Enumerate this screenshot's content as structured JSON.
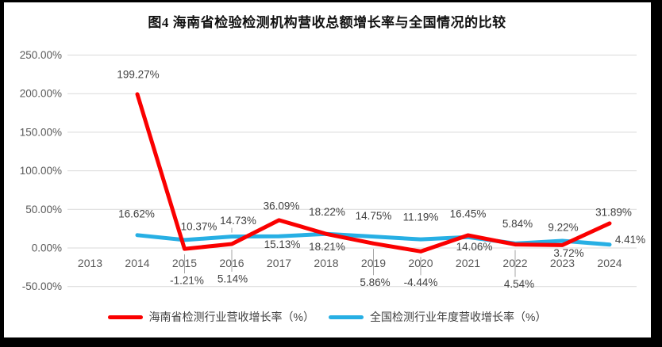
{
  "frame": {
    "border_color": "#000000",
    "background": "#ffffff"
  },
  "chart_data": {
    "type": "line",
    "title": "图4 海南省检验检测机构营收总额增长率与全国情况的比较",
    "categories": [
      "2013",
      "2014",
      "2015",
      "2016",
      "2017",
      "2018",
      "2019",
      "2020",
      "2021",
      "2022",
      "2023",
      "2024"
    ],
    "xlabel": "",
    "ylabel": "",
    "ylim": [
      -50,
      250
    ],
    "grid": true,
    "legend_position": "bottom",
    "colors": {
      "hainan": "#FA0000",
      "national": "#27AFE4",
      "gridline": "#D9D9D9",
      "tick_text": "#595959",
      "data_label_text": "#404040",
      "callout_line": "#A6A6A6"
    },
    "y_axis": {
      "ticks": [
        {
          "label": "250.00%",
          "value": 250
        },
        {
          "label": "200.00%",
          "value": 200
        },
        {
          "label": "150.00%",
          "value": 150
        },
        {
          "label": "100.00%",
          "value": 100
        },
        {
          "label": "50.00%",
          "value": 50
        },
        {
          "label": "0.00%",
          "value": 0
        },
        {
          "label": "-50.00%",
          "value": -50
        }
      ]
    },
    "series": [
      {
        "name": "海南省检测行业营收增长率（%）",
        "color": "#FA0000",
        "values": [
          null,
          199.27,
          -1.21,
          5.14,
          36.09,
          18.21,
          5.86,
          -4.44,
          16.45,
          4.54,
          3.72,
          31.89
        ],
        "labels": [
          null,
          {
            "text": "199.27%",
            "dx": 1,
            "dy": -25,
            "callout": false
          },
          {
            "text": "-1.21%",
            "dx": 3,
            "dy": 40,
            "callout": true
          },
          {
            "text": "5.14%",
            "dx": 1,
            "dy": 44,
            "callout": true
          },
          {
            "text": "36.09%",
            "dx": 3,
            "dy": -18,
            "callout": false
          },
          {
            "text": "18.21%",
            "dx": 1,
            "dy": 16,
            "callout": false
          },
          {
            "text": "5.86%",
            "dx": 2,
            "dy": 49,
            "callout": true
          },
          {
            "text": "-4.44%",
            "dx": 0,
            "dy": 39,
            "callout": true
          },
          {
            "text": "16.45%",
            "dx": 0,
            "dy": -27,
            "callout": false
          },
          {
            "text": "4.54%",
            "dx": 5,
            "dy": 50,
            "callout": true
          },
          {
            "text": "3.72%",
            "dx": 8,
            "dy": 10,
            "callout": false
          },
          {
            "text": "31.89%",
            "dx": 5,
            "dy": -14,
            "callout": false
          }
        ]
      },
      {
        "name": "全国检测行业年度营收增长率（%）",
        "color": "#27AFE4",
        "values": [
          null,
          16.62,
          10.37,
          14.73,
          15.13,
          18.22,
          14.75,
          11.19,
          14.06,
          5.84,
          9.22,
          4.41
        ],
        "labels": [
          null,
          {
            "text": "16.62%",
            "dx": -1,
            "dy": -27,
            "callout": false
          },
          {
            "text": "10.37%",
            "dx": 18,
            "dy": -17,
            "callout": false
          },
          {
            "text": "14.73%",
            "dx": 8,
            "dy": -20,
            "callout": true
          },
          {
            "text": "15.13%",
            "dx": 4,
            "dy": 10,
            "callout": false
          },
          {
            "text": "18.22%",
            "dx": 1,
            "dy": -28,
            "callout": false
          },
          {
            "text": "14.75%",
            "dx": 0,
            "dy": -26,
            "callout": false
          },
          {
            "text": "11.19%",
            "dx": 0,
            "dy": -28,
            "callout": false
          },
          {
            "text": "14.06%",
            "dx": 8,
            "dy": 12,
            "callout": false
          },
          {
            "text": "5.84%",
            "dx": 3,
            "dy": -25,
            "callout": false
          },
          {
            "text": "9.22%",
            "dx": 1,
            "dy": -17,
            "callout": false
          },
          {
            "text": "4.41%",
            "dx": 26,
            "dy": -6,
            "callout": false
          }
        ]
      }
    ]
  }
}
